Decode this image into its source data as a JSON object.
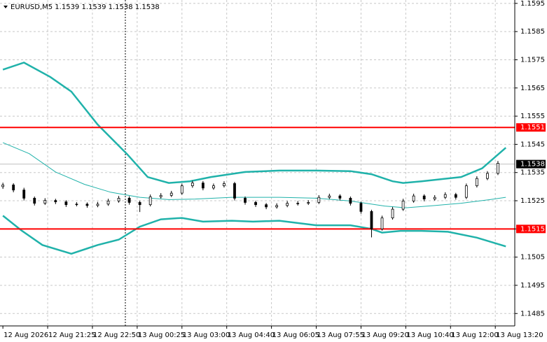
{
  "chart_data": {
    "type": "candlestick",
    "title": "EURUSD,M5  1.1539 1.1539 1.1538 1.1538",
    "candle_color": "#000000",
    "candles": [
      [
        0,
        1.153,
        1.15314,
        1.15292,
        1.15306
      ],
      [
        4,
        1.15306,
        1.15312,
        1.1528,
        1.15288
      ],
      [
        8,
        1.15288,
        1.15296,
        1.15251,
        1.15259
      ],
      [
        12,
        1.15259,
        1.15265,
        1.15233,
        1.15241
      ],
      [
        16,
        1.15241,
        1.15259,
        1.15235,
        1.15251
      ],
      [
        20,
        1.15251,
        1.15257,
        1.15238,
        1.15246
      ],
      [
        24,
        1.15246,
        1.15252,
        1.15228,
        1.15236
      ],
      [
        28,
        1.15236,
        1.15245,
        1.1523,
        1.15238
      ],
      [
        32,
        1.15238,
        1.15244,
        1.15225,
        1.15233
      ],
      [
        36,
        1.15233,
        1.15246,
        1.15227,
        1.15238
      ],
      [
        40,
        1.15238,
        1.15257,
        1.15232,
        1.15249
      ],
      [
        44,
        1.15249,
        1.15267,
        1.15243,
        1.15259
      ],
      [
        48,
        1.15259,
        1.15266,
        1.15236,
        1.15244
      ],
      [
        52,
        1.15244,
        1.1525,
        1.1521,
        1.15236
      ],
      [
        56,
        1.15236,
        1.15272,
        1.1523,
        1.15264
      ],
      [
        60,
        1.15264,
        1.15277,
        1.15258,
        1.15269
      ],
      [
        64,
        1.15269,
        1.15285,
        1.15263,
        1.15277
      ],
      [
        68,
        1.15277,
        1.15311,
        1.15271,
        1.15303
      ],
      [
        72,
        1.15303,
        1.15321,
        1.15296,
        1.15313
      ],
      [
        76,
        1.15313,
        1.1532,
        1.15287,
        1.15295
      ],
      [
        80,
        1.15295,
        1.15311,
        1.15289,
        1.15303
      ],
      [
        84,
        1.15303,
        1.15319,
        1.15297,
        1.15311
      ],
      [
        88,
        1.15311,
        1.15317,
        1.15251,
        1.15259
      ],
      [
        92,
        1.15259,
        1.15265,
        1.15236,
        1.15244
      ],
      [
        96,
        1.15244,
        1.1525,
        1.15228,
        1.15236
      ],
      [
        100,
        1.15236,
        1.15242,
        1.1522,
        1.15228
      ],
      [
        104,
        1.15228,
        1.15241,
        1.15222,
        1.15233
      ],
      [
        108,
        1.15233,
        1.15249,
        1.15227,
        1.15241
      ],
      [
        112,
        1.15241,
        1.15249,
        1.15233,
        1.15241
      ],
      [
        116,
        1.15241,
        1.15252,
        1.15235,
        1.15244
      ],
      [
        120,
        1.15244,
        1.1527,
        1.15238,
        1.15262
      ],
      [
        124,
        1.15262,
        1.15275,
        1.15256,
        1.15267
      ],
      [
        128,
        1.15267,
        1.15273,
        1.15251,
        1.15259
      ],
      [
        132,
        1.15259,
        1.15265,
        1.15233,
        1.15241
      ],
      [
        136,
        1.15241,
        1.15247,
        1.15204,
        1.15212
      ],
      [
        140,
        1.15212,
        1.15218,
        1.1512,
        1.1515
      ],
      [
        144,
        1.1515,
        1.15197,
        1.15144,
        1.15189
      ],
      [
        148,
        1.15189,
        1.15228,
        1.15183,
        1.1522
      ],
      [
        152,
        1.1522,
        1.15257,
        1.15214,
        1.15249
      ],
      [
        156,
        1.15249,
        1.15275,
        1.15243,
        1.15267
      ],
      [
        160,
        1.15267,
        1.15273,
        1.15248,
        1.15256
      ],
      [
        164,
        1.15256,
        1.1527,
        1.1525,
        1.15262
      ],
      [
        168,
        1.15262,
        1.1528,
        1.15256,
        1.15272
      ],
      [
        172,
        1.15272,
        1.15278,
        1.15254,
        1.15262
      ],
      [
        176,
        1.15262,
        1.15311,
        1.15256,
        1.15303
      ],
      [
        180,
        1.15303,
        1.15337,
        1.15297,
        1.15329
      ],
      [
        184,
        1.15329,
        1.15355,
        1.15323,
        1.15347
      ],
      [
        188,
        1.15347,
        1.15391,
        1.15341,
        1.15383
      ]
    ],
    "bands": [
      {
        "color": "#20b2aa",
        "width": 2.5,
        "x": [
          0,
          8,
          18,
          26,
          36,
          47,
          55,
          63,
          71,
          79,
          92,
          105,
          119,
          132,
          140,
          148,
          152,
          159,
          166,
          174,
          182,
          191
        ],
        "values": [
          1.15715,
          1.1574,
          1.15689,
          1.15637,
          1.1552,
          1.15417,
          1.15334,
          1.15313,
          1.15319,
          1.15334,
          1.15352,
          1.15357,
          1.15357,
          1.15355,
          1.15344,
          1.15319,
          1.15313,
          1.15319,
          1.15326,
          1.15334,
          1.15365,
          1.15438
        ]
      },
      {
        "color": "#20b2aa",
        "width": 1,
        "x": [
          0,
          10,
          20,
          31,
          41,
          52,
          63,
          73,
          87,
          105,
          119,
          132,
          145,
          153,
          164,
          174,
          185,
          191
        ],
        "values": [
          1.15456,
          1.15417,
          1.15352,
          1.15308,
          1.1528,
          1.15262,
          1.15254,
          1.15256,
          1.15262,
          1.15262,
          1.15259,
          1.15249,
          1.15231,
          1.15225,
          1.15233,
          1.15241,
          1.15254,
          1.15262
        ]
      },
      {
        "color": "#20b2aa",
        "width": 2.5,
        "x": [
          0,
          7,
          15,
          26,
          36,
          44,
          52,
          60,
          68,
          76,
          87,
          95,
          105,
          119,
          132,
          140,
          144,
          151,
          159,
          169,
          180,
          191
        ],
        "values": [
          1.15197,
          1.15145,
          1.15093,
          1.15062,
          1.15093,
          1.15112,
          1.15158,
          1.15184,
          1.15189,
          1.15176,
          1.15179,
          1.15176,
          1.15179,
          1.15163,
          1.15163,
          1.1515,
          1.15137,
          1.15143,
          1.15143,
          1.1514,
          1.15119,
          1.15088
        ]
      }
    ],
    "levels": [
      {
        "value": 1.1551,
        "color": "#ff0000"
      },
      {
        "value": 1.1515,
        "color": "#ff0000"
      }
    ],
    "current_price": 1.1538,
    "separator_x": 46.5,
    "xlim": [
      -1.1,
      194.4
    ],
    "ylim": [
      1.14806,
      1.15962
    ],
    "grid": true,
    "xticks": [
      {
        "value": 0,
        "label": "12 Aug 2026"
      },
      {
        "value": 17,
        "label": "12 Aug 21:25"
      },
      {
        "value": 34,
        "label": "12 Aug 22:50"
      },
      {
        "value": 51,
        "label": "13 Aug 00:25"
      },
      {
        "value": 68,
        "label": "13 Aug 03:00"
      },
      {
        "value": 85,
        "label": "13 Aug 04:40"
      },
      {
        "value": 102,
        "label": "13 Aug 06:05"
      },
      {
        "value": 119,
        "label": "13 Aug 07:55"
      },
      {
        "value": 136,
        "label": "13 Aug 09:20"
      },
      {
        "value": 153,
        "label": "13 Aug 10:40"
      },
      {
        "value": 170,
        "label": "13 Aug 12:00"
      },
      {
        "value": 187,
        "label": "13 Aug 13:20"
      }
    ],
    "yticks": [
      1.1485,
      1.1495,
      1.1505,
      1.1515,
      1.1525,
      1.1535,
      1.1545,
      1.1555,
      1.1565,
      1.1575,
      1.1585,
      1.1595
    ]
  }
}
